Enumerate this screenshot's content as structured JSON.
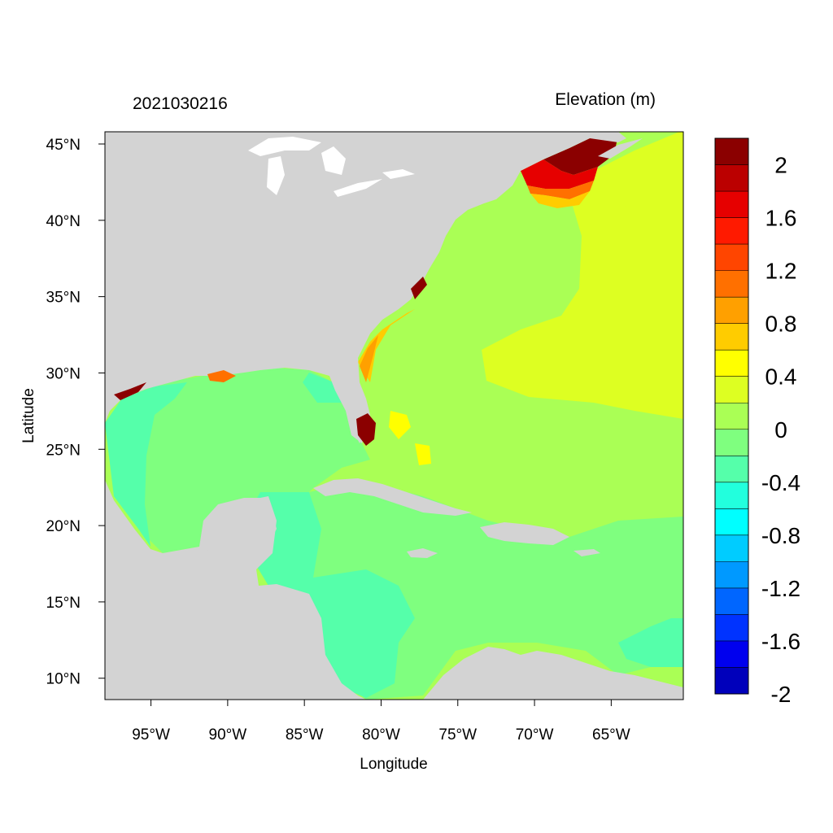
{
  "header": {
    "date_label": "2021030216",
    "variable_label": "Elevation (m)"
  },
  "axes": {
    "xlabel": "Longitude",
    "ylabel": "Latitude",
    "lon_range": [
      -98,
      -60.3
    ],
    "lat_range": [
      8.6,
      45.8
    ],
    "lon_ticks": [
      {
        "value": -95,
        "label": "95°W"
      },
      {
        "value": -90,
        "label": "90°W"
      },
      {
        "value": -85,
        "label": "85°W"
      },
      {
        "value": -80,
        "label": "80°W"
      },
      {
        "value": -75,
        "label": "75°W"
      },
      {
        "value": -70,
        "label": "70°W"
      },
      {
        "value": -65,
        "label": "65°W"
      }
    ],
    "lat_ticks": [
      {
        "value": 45,
        "label": "45°N"
      },
      {
        "value": 40,
        "label": "40°N"
      },
      {
        "value": 35,
        "label": "35°N"
      },
      {
        "value": 30,
        "label": "30°N"
      },
      {
        "value": 25,
        "label": "25°N"
      },
      {
        "value": 20,
        "label": "20°N"
      },
      {
        "value": 15,
        "label": "15°N"
      },
      {
        "value": 10,
        "label": "10°N"
      }
    ]
  },
  "colorbar": {
    "colors_top_to_bottom": [
      "#8b0000",
      "#bb0000",
      "#e60000",
      "#ff1a00",
      "#ff4500",
      "#ff7000",
      "#ffa000",
      "#ffcc00",
      "#ffff00",
      "#ddff22",
      "#aaff55",
      "#7fff7f",
      "#55ffaa",
      "#22ffdd",
      "#00ffff",
      "#00ccff",
      "#0099ff",
      "#0066ff",
      "#0033ff",
      "#0000ee",
      "#0000bb"
    ],
    "tick_labels": [
      {
        "value": 2,
        "label": "2"
      },
      {
        "value": 1.6,
        "label": "1.6"
      },
      {
        "value": 1.2,
        "label": "1.2"
      },
      {
        "value": 0.8,
        "label": "0.8"
      },
      {
        "value": 0.4,
        "label": "0.4"
      },
      {
        "value": 0,
        "label": "0"
      },
      {
        "value": -0.4,
        "label": "-0.4"
      },
      {
        "value": -0.8,
        "label": "-0.8"
      },
      {
        "value": -1.2,
        "label": "-1.2"
      },
      {
        "value": -1.6,
        "label": "-1.6"
      },
      {
        "value": -2,
        "label": "-2"
      }
    ]
  },
  "map_colors": {
    "land": "#d3d3d3",
    "lakes": "#ffffff"
  }
}
